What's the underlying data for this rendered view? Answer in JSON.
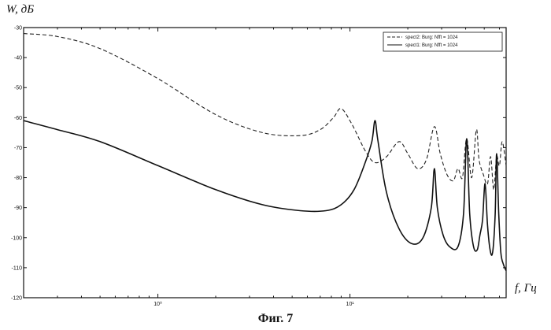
{
  "ylabel": "W, дБ",
  "xlabel": "f, Гц",
  "caption": "Фиг. 7",
  "chart_data": {
    "type": "line",
    "xscale": "log",
    "xlim": [
      0.2,
      65
    ],
    "ylim": [
      -120,
      -30
    ],
    "x_ticks": [
      "10⁰",
      "10¹"
    ],
    "y_ticks": [
      "-30",
      "-40",
      "-50",
      "-60",
      "-70",
      "-80",
      "-90",
      "-100",
      "-110",
      "-120"
    ],
    "grid": false,
    "legend_placement": "top-right",
    "series": [
      {
        "name": "spect2: Burg: Nfft = 1024",
        "style": "dashed",
        "color": "#222222",
        "x": [
          0.2,
          0.3,
          0.5,
          1.0,
          2.0,
          3.5,
          5.5,
          7.0,
          8.2,
          9.0,
          10.2,
          12.0,
          13.5,
          15.5,
          18.0,
          20.0,
          22.5,
          25.0,
          27.5,
          29.5,
          32.0,
          34.5,
          36.5,
          38.5,
          40.5,
          43.0,
          45.5,
          47.0,
          49.5,
          52.0,
          54.0,
          56.0,
          58.0,
          60.0,
          62.0,
          65.0
        ],
        "y": [
          -32,
          -33,
          -37,
          -47,
          -59,
          -65,
          -66,
          -64,
          -60,
          -57,
          -62,
          -71,
          -75,
          -73,
          -68,
          -72,
          -77,
          -74,
          -63,
          -72,
          -79,
          -81,
          -77,
          -80,
          -67,
          -80,
          -64,
          -74,
          -79,
          -82,
          -73,
          -84,
          -73,
          -76,
          -68,
          -76
        ]
      },
      {
        "name": "spect1: Burg: Nfft = 1024",
        "style": "solid",
        "color": "#111111",
        "x": [
          0.2,
          0.3,
          0.5,
          1.0,
          2.0,
          3.5,
          5.5,
          7.5,
          9.0,
          10.5,
          12.0,
          13.0,
          13.5,
          14.0,
          15.5,
          18.0,
          21.0,
          24.0,
          26.5,
          27.5,
          28.5,
          30.5,
          33.0,
          36.5,
          39.0,
          40.5,
          42.0,
          44.0,
          46.0,
          47.5,
          49.0,
          50.5,
          52.0,
          54.0,
          55.5,
          57.0,
          58.0,
          59.5,
          61.0,
          63.0,
          65.0
        ],
        "y": [
          -61,
          -64,
          -68,
          -76,
          -84,
          -89,
          -91,
          -91,
          -89,
          -84,
          -75,
          -68,
          -61,
          -68,
          -85,
          -97,
          -102,
          -100,
          -90,
          -77,
          -90,
          -99,
          -103,
          -103,
          -92,
          -67,
          -92,
          -103,
          -104,
          -99,
          -94,
          -82,
          -96,
          -105,
          -104,
          -92,
          -72,
          -92,
          -105,
          -109,
          -111
        ]
      }
    ]
  }
}
